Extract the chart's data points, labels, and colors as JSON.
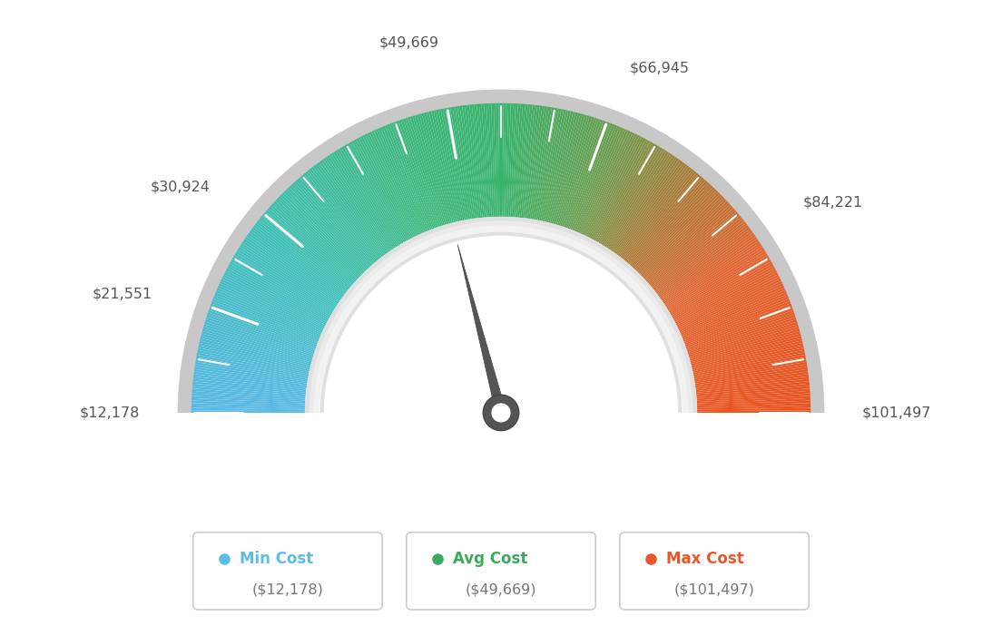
{
  "min_val": 12178,
  "max_val": 101497,
  "avg_val": 49669,
  "labels": {
    "min_label": "$12,178",
    "label2": "$21,551",
    "label3": "$30,924",
    "label4": "$49,669",
    "label5": "$66,945",
    "label6": "$84,221",
    "max_label": "$101,497"
  },
  "legend": [
    {
      "label": "Min Cost",
      "value": "($12,178)",
      "color": "#5bbce4"
    },
    {
      "label": "Avg Cost",
      "value": "($49,669)",
      "color": "#3aaa5c"
    },
    {
      "label": "Max Cost",
      "value": "($101,497)",
      "color": "#e8572a"
    }
  ],
  "needle_value": 49669,
  "bg_color": "#ffffff",
  "color_stops": [
    [
      0.0,
      [
        0.35,
        0.72,
        0.9
      ]
    ],
    [
      0.2,
      [
        0.25,
        0.75,
        0.72
      ]
    ],
    [
      0.38,
      [
        0.25,
        0.72,
        0.5
      ]
    ],
    [
      0.5,
      [
        0.22,
        0.7,
        0.42
      ]
    ],
    [
      0.62,
      [
        0.42,
        0.62,
        0.32
      ]
    ],
    [
      0.72,
      [
        0.68,
        0.48,
        0.22
      ]
    ],
    [
      0.82,
      [
        0.88,
        0.4,
        0.2
      ]
    ],
    [
      1.0,
      [
        0.91,
        0.33,
        0.13
      ]
    ]
  ]
}
